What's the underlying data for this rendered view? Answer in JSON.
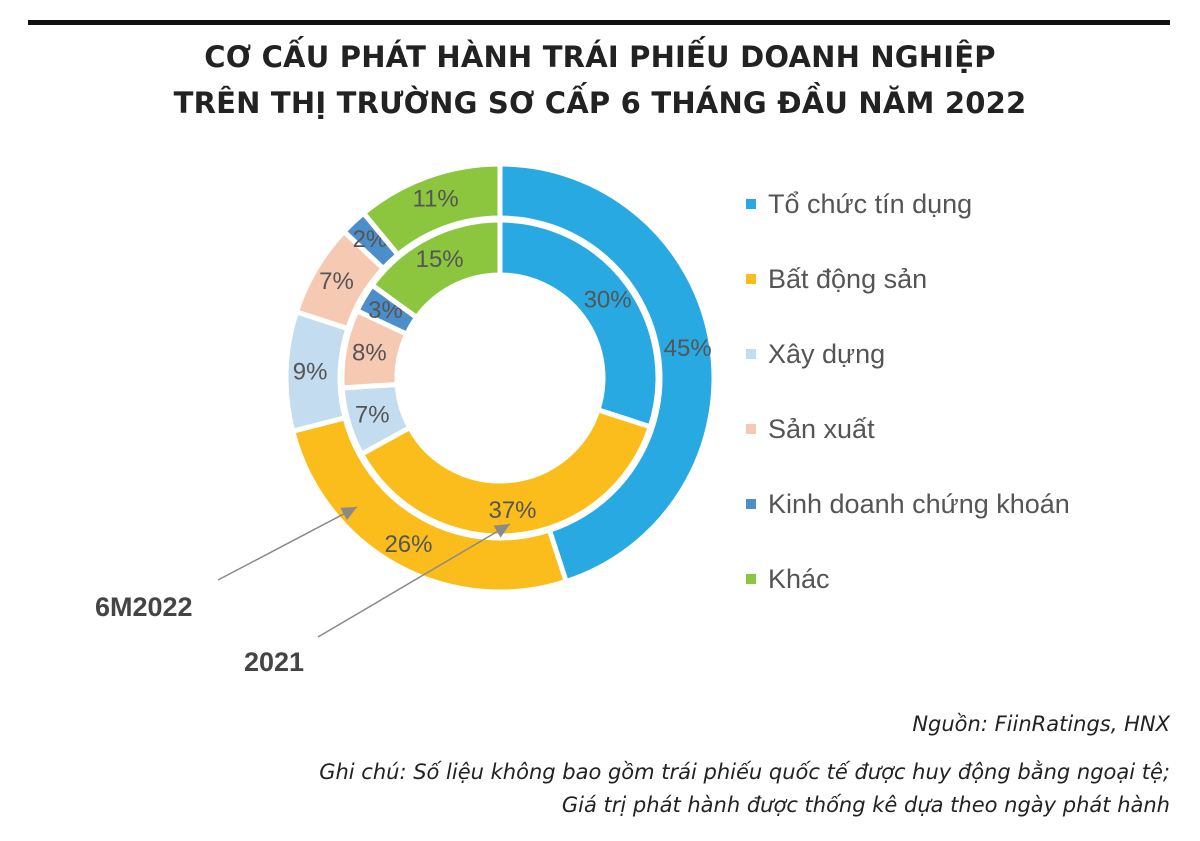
{
  "title": {
    "line1": "CƠ CẤU PHÁT HÀNH TRÁI PHIẾU DOANH NGHIỆP",
    "line2": "TRÊN THỊ TRƯỜNG SƠ CẤP 6 THÁNG ĐẦU NĂM 2022"
  },
  "chart_data": {
    "type": "doughnut",
    "categories": [
      "Tổ chức tín dụng",
      "Bất động sản",
      "Xây dựng",
      "Sản xuất",
      "Kinh doanh chứng khoán",
      "Khác"
    ],
    "colors": [
      "#29a9e1",
      "#fbbd1b",
      "#c3dcf0",
      "#f6c9b3",
      "#4b8ec9",
      "#8cc63f"
    ],
    "series": [
      {
        "name": "6M2022",
        "ring": "outer",
        "values": [
          45,
          26,
          9,
          7,
          2,
          11
        ],
        "labels": [
          "45%",
          "26%",
          "9%",
          "7%",
          "2%",
          "11%"
        ]
      },
      {
        "name": "2021",
        "ring": "inner",
        "values": [
          30,
          37,
          7,
          8,
          3,
          15
        ],
        "labels": [
          "30%",
          "37%",
          "7%",
          "8%",
          "3%",
          "15%"
        ]
      }
    ],
    "legend_position": "right",
    "unit": "%"
  },
  "footer": {
    "source": "Nguồn: FiinRatings, HNX",
    "note_line1": "Ghi chú: Số liệu không bao gồm trái phiếu  quốc tế được huy động bằng ngoại tệ;",
    "note_line2": "Giá trị phát hành được thống kê dựa theo ngày phát hành"
  }
}
